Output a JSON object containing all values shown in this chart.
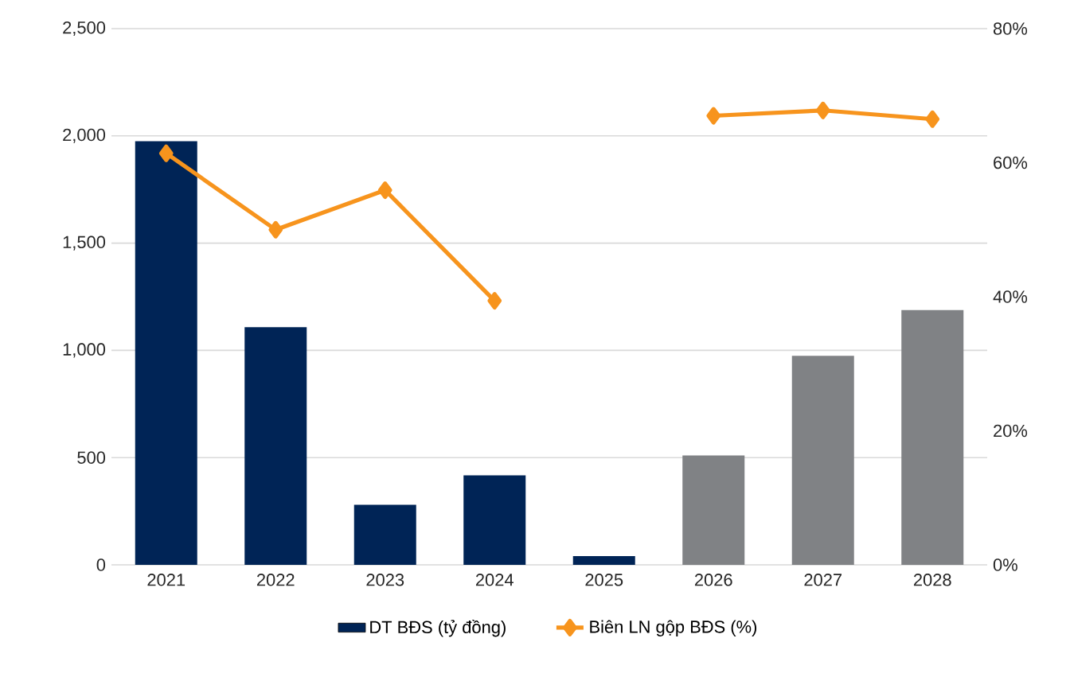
{
  "chart_data": {
    "type": "bar",
    "categories": [
      "2021",
      "2022",
      "2023",
      "2024",
      "2025",
      "2026",
      "2027",
      "2028"
    ],
    "series": [
      {
        "name": "DT BĐS (tỷ đồng)",
        "colors": [
          "#002456",
          "#002456",
          "#002456",
          "#002456",
          "#002456",
          "#808285",
          "#808285",
          "#808285"
        ],
        "values": [
          1975,
          1108,
          280,
          417,
          41,
          510,
          975,
          1188
        ]
      },
      {
        "name": "Biên LN gộp BĐS (%)",
        "type": "line",
        "axis": "y2",
        "color": "#f7941d",
        "values": [
          61.4,
          50,
          55.9,
          39.4,
          null,
          67,
          67.8,
          66.5
        ]
      }
    ],
    "ylim": [
      0,
      2500
    ],
    "yticks": [
      0,
      500,
      {
        "value": 1000,
        "label": "1,000"
      },
      {
        "value": 1500,
        "label": "1,500"
      },
      {
        "value": 2000,
        "label": "2,000"
      },
      {
        "value": 2500,
        "label": "2,500"
      }
    ],
    "y2lim": [
      0,
      80
    ],
    "y2ticks": [
      {
        "value": 0,
        "label": "0%"
      },
      {
        "value": 20,
        "label": "20%"
      },
      {
        "value": 40,
        "label": "40%"
      },
      {
        "value": 60,
        "label": "60%"
      },
      {
        "value": 80,
        "label": "80%"
      }
    ],
    "grid": "y",
    "legend": "bottom",
    "marker": "diamond"
  }
}
